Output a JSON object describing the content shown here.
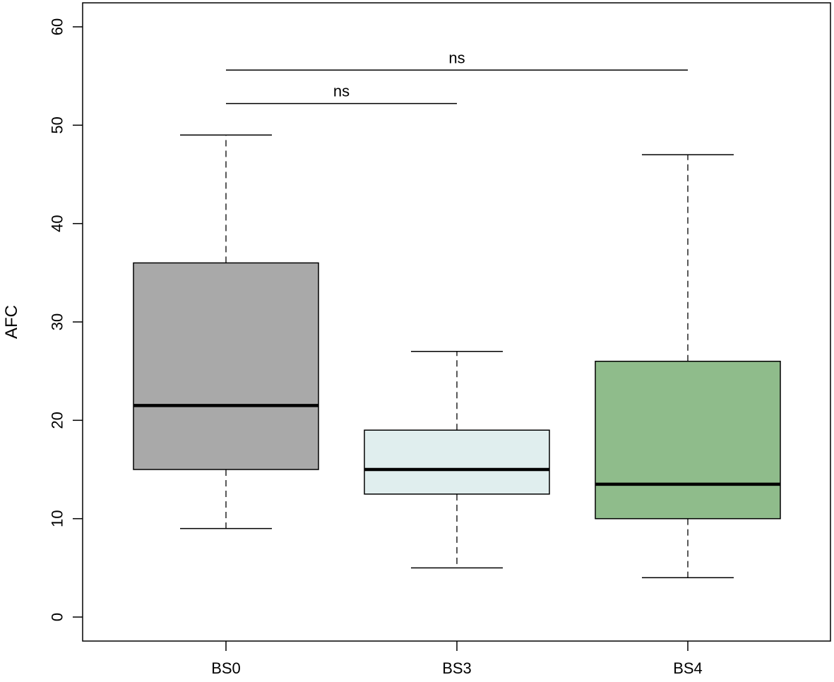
{
  "chart_data": {
    "type": "box",
    "title": "",
    "xlabel": "",
    "ylabel": "AFC",
    "ylim": [
      -2.5,
      62.5
    ],
    "yticks": [
      0,
      10,
      20,
      30,
      40,
      50,
      60
    ],
    "grid": false,
    "legend": "none",
    "categories": [
      "BS0",
      "BS3",
      "BS4"
    ],
    "boxes": [
      {
        "category": "BS0",
        "min": 9,
        "q1": 15,
        "median": 21.5,
        "q3": 36,
        "max": 49,
        "color": "#a9a9a9"
      },
      {
        "category": "BS3",
        "min": 5,
        "q1": 12.5,
        "median": 15,
        "q3": 19,
        "max": 27,
        "color": "#e0eeee"
      },
      {
        "category": "BS4",
        "min": 4,
        "q1": 10,
        "median": 13.5,
        "q3": 26,
        "max": 47,
        "color": "#8fbc8b"
      }
    ],
    "annotations": [
      {
        "from": "BS0",
        "to": "BS3",
        "y": 52.2,
        "label": "ns"
      },
      {
        "from": "BS0",
        "to": "BS4",
        "y": 55.6,
        "label": "ns"
      }
    ]
  }
}
